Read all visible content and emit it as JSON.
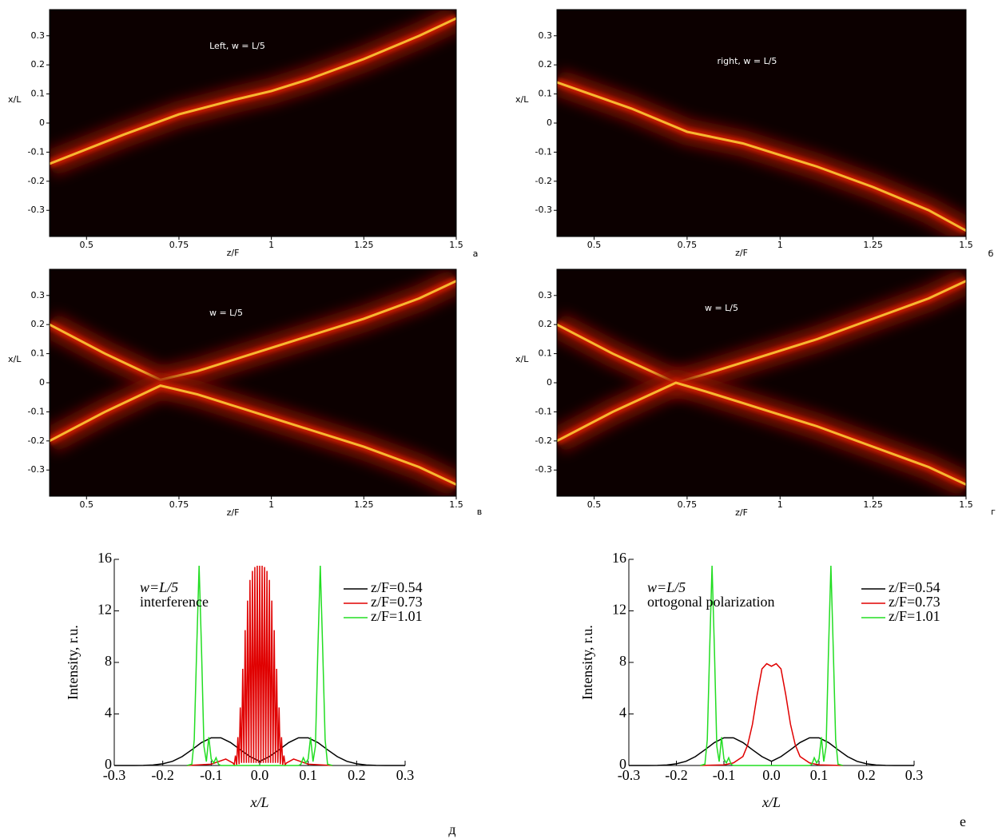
{
  "chart_data": [
    {
      "type": "heatmap",
      "annotation": "Left, w = L/5",
      "panel_label": "а",
      "xlabel": "z/F",
      "ylabel": "x/L",
      "xlim": [
        0.4,
        1.5
      ],
      "xticks": [
        0.5,
        0.75,
        1,
        1.25,
        1.5
      ],
      "ylim": [
        -0.39,
        0.39
      ],
      "yticks": [
        -0.3,
        -0.2,
        -0.1,
        0,
        0.1,
        0.2,
        0.3
      ],
      "beams": [
        {
          "x": [
            0.4,
            0.6,
            0.75,
            0.9,
            1.0,
            1.1,
            1.25,
            1.4,
            1.5
          ],
          "values": [
            -0.14,
            -0.04,
            0.03,
            0.08,
            0.11,
            0.15,
            0.22,
            0.3,
            0.36
          ]
        }
      ]
    },
    {
      "type": "heatmap",
      "annotation": "right, w = L/5",
      "panel_label": "б",
      "xlabel": "z/F",
      "ylabel": "x/L",
      "xlim": [
        0.4,
        1.5
      ],
      "xticks": [
        0.5,
        0.75,
        1,
        1.25,
        1.5
      ],
      "ylim": [
        -0.39,
        0.39
      ],
      "yticks": [
        -0.3,
        -0.2,
        -0.1,
        0,
        0.1,
        0.2,
        0.3
      ],
      "beams": [
        {
          "x": [
            0.4,
            0.6,
            0.75,
            0.9,
            1.0,
            1.1,
            1.25,
            1.4,
            1.5
          ],
          "values": [
            0.14,
            0.05,
            -0.03,
            -0.07,
            -0.11,
            -0.15,
            -0.22,
            -0.3,
            -0.37
          ]
        }
      ]
    },
    {
      "type": "heatmap",
      "annotation": "w = L/5",
      "panel_label": "в",
      "xlabel": "z/F",
      "ylabel": "x/L",
      "xlim": [
        0.4,
        1.5
      ],
      "xticks": [
        0.5,
        0.75,
        1,
        1.25,
        1.5
      ],
      "ylim": [
        -0.39,
        0.39
      ],
      "yticks": [
        -0.3,
        -0.2,
        -0.1,
        0,
        0.1,
        0.2,
        0.3
      ],
      "beams": [
        {
          "x": [
            0.4,
            0.55,
            0.7,
            0.8,
            0.9,
            1.0,
            1.1,
            1.25,
            1.4,
            1.5
          ],
          "values": [
            0.2,
            0.1,
            0.01,
            0.04,
            0.08,
            0.12,
            0.16,
            0.22,
            0.29,
            0.35
          ]
        },
        {
          "x": [
            0.4,
            0.55,
            0.7,
            0.8,
            0.9,
            1.0,
            1.1,
            1.25,
            1.4,
            1.5
          ],
          "values": [
            -0.2,
            -0.1,
            -0.01,
            -0.04,
            -0.08,
            -0.12,
            -0.16,
            -0.22,
            -0.29,
            -0.35
          ]
        }
      ]
    },
    {
      "type": "heatmap",
      "annotation": "w = L/5",
      "panel_label": "г",
      "xlabel": "z/F",
      "ylabel": "x/L",
      "xlim": [
        0.4,
        1.5
      ],
      "xticks": [
        0.5,
        0.75,
        1,
        1.25,
        1.5
      ],
      "ylim": [
        -0.39,
        0.39
      ],
      "yticks": [
        -0.3,
        -0.2,
        -0.1,
        0,
        0.1,
        0.2,
        0.3
      ],
      "beams": [
        {
          "x": [
            0.4,
            0.55,
            0.72,
            0.8,
            0.9,
            1.0,
            1.1,
            1.25,
            1.4,
            1.5
          ],
          "values": [
            0.2,
            0.1,
            0.0,
            0.03,
            0.07,
            0.11,
            0.15,
            0.22,
            0.29,
            0.35
          ]
        },
        {
          "x": [
            0.4,
            0.55,
            0.72,
            0.8,
            0.9,
            1.0,
            1.1,
            1.25,
            1.4,
            1.5
          ],
          "values": [
            -0.2,
            -0.1,
            0.0,
            -0.03,
            -0.07,
            -0.11,
            -0.15,
            -0.22,
            -0.29,
            -0.35
          ]
        }
      ]
    },
    {
      "type": "line",
      "panel_label": "д",
      "xlabel": "x/L",
      "ylabel": "Intensity, r.u.",
      "annotations": [
        "w=L/5",
        "interference"
      ],
      "xlim": [
        -0.3,
        0.3
      ],
      "xticks": [
        -0.3,
        -0.2,
        -0.1,
        {
          "value": 0,
          "label": "0.0"
        },
        0.1,
        0.2,
        0.3
      ],
      "ylim": [
        0,
        16
      ],
      "yticks": [
        0,
        4,
        8,
        12,
        16
      ],
      "series": [
        {
          "name": "z/F=0.54",
          "color": "#000000",
          "x": [
            -0.3,
            -0.28,
            -0.26,
            -0.24,
            -0.22,
            -0.2,
            -0.18,
            -0.16,
            -0.14,
            -0.12,
            -0.1,
            -0.08,
            -0.06,
            -0.04,
            -0.02,
            0,
            0.02,
            0.04,
            0.06,
            0.08,
            0.1,
            0.12,
            0.14,
            0.16,
            0.18,
            0.2,
            0.22,
            0.24,
            0.26,
            0.28,
            0.3
          ],
          "values": [
            0,
            0,
            0,
            0.01,
            0.04,
            0.13,
            0.32,
            0.69,
            1.22,
            1.78,
            2.15,
            2.15,
            1.78,
            1.22,
            0.69,
            0.32,
            0.69,
            1.22,
            1.78,
            2.15,
            2.15,
            1.78,
            1.22,
            0.69,
            0.32,
            0.13,
            0.04,
            0.01,
            0,
            0,
            0
          ]
        },
        {
          "name": "z/F=0.73",
          "color": "#e00000",
          "x": [
            -0.15,
            -0.1,
            -0.07,
            -0.055,
            -0.0525,
            -0.05,
            -0.0475,
            -0.045,
            -0.0425,
            -0.04,
            -0.0375,
            -0.035,
            -0.0325,
            -0.03,
            -0.0275,
            -0.025,
            -0.0225,
            -0.02,
            -0.0175,
            -0.015,
            -0.0125,
            -0.01,
            -0.0075,
            -0.005,
            -0.0025,
            0,
            0.0025,
            0.005,
            0.0075,
            0.01,
            0.0125,
            0.015,
            0.0175,
            0.02,
            0.0225,
            0.025,
            0.0275,
            0.03,
            0.0325,
            0.035,
            0.0375,
            0.04,
            0.0425,
            0.045,
            0.0475,
            0.05,
            0.0525,
            0.055,
            0.07,
            0.1,
            0.15
          ],
          "values": [
            0,
            0.1,
            0.5,
            0.19,
            0.05,
            0.77,
            0.05,
            2.2,
            0.1,
            4.5,
            0.2,
            7.5,
            0.2,
            10.5,
            0.2,
            12.8,
            0.2,
            14.4,
            0.2,
            15.1,
            0.2,
            15.4,
            0.2,
            15.5,
            0.2,
            15.5,
            0.2,
            15.5,
            0.2,
            15.4,
            0.2,
            15.1,
            0.2,
            14.4,
            0.2,
            12.8,
            0.2,
            10.5,
            0.2,
            7.5,
            0.2,
            4.5,
            0.1,
            2.2,
            0.05,
            0.77,
            0.05,
            0.19,
            0.5,
            0.1,
            0
          ]
        },
        {
          "name": "z/F=1.01",
          "color": "#22dd22",
          "x": [
            -0.15,
            -0.14,
            -0.135,
            -0.13,
            -0.125,
            -0.12,
            -0.115,
            -0.11,
            -0.105,
            -0.1,
            -0.095,
            -0.09,
            -0.085,
            -0.08,
            -0.06,
            0,
            0.06,
            0.08,
            0.085,
            0.09,
            0.095,
            0.1,
            0.105,
            0.11,
            0.115,
            0.12,
            0.125,
            0.13,
            0.135,
            0.14,
            0.15
          ],
          "values": [
            0,
            0.1,
            2,
            9,
            15.5,
            9,
            1.5,
            0.3,
            2.2,
            0.5,
            0.2,
            0.6,
            0.1,
            0,
            0,
            0,
            0,
            0,
            0.1,
            0.6,
            0.2,
            0.5,
            2.2,
            0.3,
            1.5,
            9,
            15.5,
            9,
            2,
            0.1,
            0
          ]
        }
      ]
    },
    {
      "type": "line",
      "panel_label": "е",
      "xlabel": "x/L",
      "ylabel": "Intensity, r.u.",
      "annotations": [
        "w=L/5",
        "ortogonal polarization"
      ],
      "xlim": [
        -0.3,
        0.3
      ],
      "xticks": [
        -0.3,
        -0.2,
        -0.1,
        {
          "value": 0,
          "label": "0.0"
        },
        0.1,
        0.2,
        0.3
      ],
      "ylim": [
        0,
        16
      ],
      "yticks": [
        0,
        4,
        8,
        12,
        16
      ],
      "series": [
        {
          "name": "z/F=0.54",
          "color": "#000000",
          "x": [
            -0.3,
            -0.28,
            -0.26,
            -0.24,
            -0.22,
            -0.2,
            -0.18,
            -0.16,
            -0.14,
            -0.12,
            -0.1,
            -0.08,
            -0.06,
            -0.04,
            -0.02,
            0,
            0.02,
            0.04,
            0.06,
            0.08,
            0.1,
            0.12,
            0.14,
            0.16,
            0.18,
            0.2,
            0.22,
            0.24,
            0.26,
            0.28,
            0.3
          ],
          "values": [
            0,
            0,
            0,
            0.01,
            0.04,
            0.13,
            0.32,
            0.69,
            1.22,
            1.78,
            2.15,
            2.15,
            1.78,
            1.22,
            0.69,
            0.32,
            0.69,
            1.22,
            1.78,
            2.15,
            2.15,
            1.78,
            1.22,
            0.69,
            0.32,
            0.13,
            0.04,
            0.01,
            0,
            0,
            0
          ]
        },
        {
          "name": "z/F=0.73",
          "color": "#e00000",
          "x": [
            -0.15,
            -0.1,
            -0.08,
            -0.06,
            -0.05,
            -0.04,
            -0.03,
            -0.02,
            -0.01,
            0,
            0.01,
            0.02,
            0.03,
            0.04,
            0.05,
            0.06,
            0.08,
            0.1,
            0.15
          ],
          "values": [
            0,
            0.05,
            0.2,
            0.7,
            1.6,
            3.2,
            5.5,
            7.5,
            7.9,
            7.7,
            7.9,
            7.5,
            5.5,
            3.2,
            1.6,
            0.7,
            0.2,
            0.05,
            0
          ]
        },
        {
          "name": "z/F=1.01",
          "color": "#22dd22",
          "x": [
            -0.15,
            -0.14,
            -0.135,
            -0.13,
            -0.125,
            -0.12,
            -0.115,
            -0.11,
            -0.105,
            -0.1,
            -0.095,
            -0.09,
            -0.085,
            -0.08,
            -0.06,
            0,
            0.06,
            0.08,
            0.085,
            0.09,
            0.095,
            0.1,
            0.105,
            0.11,
            0.115,
            0.12,
            0.125,
            0.13,
            0.135,
            0.14,
            0.15
          ],
          "values": [
            0,
            0.1,
            2,
            9,
            15.5,
            9,
            1.5,
            0.3,
            2.2,
            0.5,
            0.2,
            0.6,
            0.1,
            0,
            0,
            0,
            0,
            0,
            0.1,
            0.6,
            0.2,
            0.5,
            2.2,
            0.3,
            1.5,
            9,
            15.5,
            9,
            2,
            0.1,
            0
          ]
        }
      ]
    }
  ]
}
